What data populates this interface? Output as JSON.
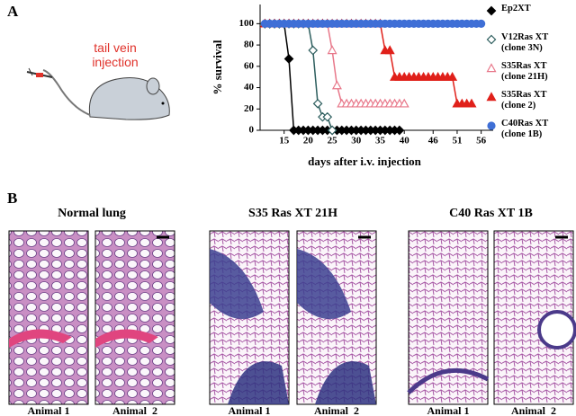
{
  "panel_a": {
    "label": "A",
    "illustration": "tail vein injection"
  },
  "chart_data": {
    "type": "line",
    "ylabel": "% survival",
    "xlabel": "days after i.v. injection",
    "xlim": [
      10,
      58.5
    ],
    "xticks": [
      15,
      20,
      25,
      30,
      35,
      40,
      46,
      51,
      56
    ],
    "ylim": [
      0,
      118
    ],
    "yticks": [
      0,
      20,
      40,
      60,
      80,
      100
    ],
    "grid": false,
    "series": [
      {
        "name": "Ep2XT",
        "color": "#000000",
        "marker": "diamond",
        "x": [
          11,
          12,
          13,
          14,
          15,
          16,
          17,
          18,
          19,
          20,
          21,
          22,
          23,
          24,
          25,
          26,
          27,
          28,
          29,
          30,
          31,
          32,
          33,
          34,
          35,
          36,
          37,
          38,
          39
        ],
        "values": [
          100,
          100,
          100,
          100,
          100,
          67,
          0,
          0,
          0,
          0,
          0,
          0,
          0,
          0,
          0,
          0,
          0,
          0,
          0,
          0,
          0,
          0,
          0,
          0,
          0,
          0,
          0,
          0,
          0
        ]
      },
      {
        "name": "V12Ras XT (clone 3N)",
        "color": "#2d5e5e",
        "marker": "diamond-open",
        "x": [
          11,
          12,
          13,
          14,
          15,
          16,
          17,
          18,
          19,
          20,
          21,
          22,
          23,
          24,
          25
        ],
        "values": [
          100,
          100,
          100,
          100,
          100,
          100,
          100,
          100,
          100,
          100,
          75,
          25,
          12.5,
          12.5,
          0
        ]
      },
      {
        "name": "S35Ras XT (clone 21H)",
        "color": "#e8788a",
        "marker": "triangle-open",
        "x": [
          11,
          12,
          13,
          14,
          15,
          16,
          17,
          18,
          19,
          20,
          21,
          22,
          23,
          24,
          25,
          26,
          27,
          28,
          29,
          30,
          31,
          32,
          33,
          34,
          35,
          36,
          37,
          38,
          39,
          40
        ],
        "values": [
          100,
          100,
          100,
          100,
          100,
          100,
          100,
          100,
          100,
          100,
          100,
          100,
          100,
          100,
          75,
          42,
          25,
          25,
          25,
          25,
          25,
          25,
          25,
          25,
          25,
          25,
          25,
          25,
          25,
          25
        ]
      },
      {
        "name": "S35Ras XT (clone 2)",
        "color": "#e0201a",
        "marker": "triangle",
        "x": [
          11,
          12,
          13,
          14,
          15,
          16,
          17,
          18,
          19,
          20,
          21,
          22,
          23,
          24,
          25,
          26,
          27,
          28,
          29,
          30,
          31,
          32,
          33,
          34,
          35,
          36,
          37,
          38,
          39,
          40,
          41,
          42,
          43,
          44,
          45,
          46,
          47,
          48,
          49,
          50,
          51,
          52,
          53,
          54
        ],
        "values": [
          100,
          100,
          100,
          100,
          100,
          100,
          100,
          100,
          100,
          100,
          100,
          100,
          100,
          100,
          100,
          100,
          100,
          100,
          100,
          100,
          100,
          100,
          100,
          100,
          100,
          75,
          75,
          50,
          50,
          50,
          50,
          50,
          50,
          50,
          50,
          50,
          50,
          50,
          50,
          50,
          25,
          25,
          25,
          25
        ]
      },
      {
        "name": "C40Ras XT (clone 1B)",
        "color": "#3f6fd6",
        "marker": "circle",
        "x": [
          11,
          12,
          13,
          14,
          15,
          16,
          17,
          18,
          19,
          20,
          21,
          22,
          23,
          24,
          25,
          26,
          27,
          28,
          29,
          30,
          31,
          32,
          33,
          34,
          35,
          36,
          37,
          38,
          39,
          40,
          41,
          42,
          43,
          44,
          45,
          46,
          47,
          48,
          49,
          50,
          51,
          52,
          53,
          54,
          55,
          56
        ],
        "values": [
          100,
          100,
          100,
          100,
          100,
          100,
          100,
          100,
          100,
          100,
          100,
          100,
          100,
          100,
          100,
          100,
          100,
          100,
          100,
          100,
          100,
          100,
          100,
          100,
          100,
          100,
          100,
          100,
          100,
          100,
          100,
          100,
          100,
          100,
          100,
          100,
          100,
          100,
          100,
          100,
          100,
          100,
          100,
          100,
          100,
          100
        ]
      }
    ]
  },
  "panel_b": {
    "label": "B",
    "groups": [
      {
        "title": "Normal lung",
        "animals": [
          "Animal 1",
          "Animal  2"
        ]
      },
      {
        "title": "S35 Ras XT 21H",
        "animals": [
          "Animal 1",
          "Animal  2"
        ]
      },
      {
        "title": "C40 Ras XT 1B",
        "animals": [
          "Animal 1",
          "Animal  2"
        ]
      }
    ]
  }
}
